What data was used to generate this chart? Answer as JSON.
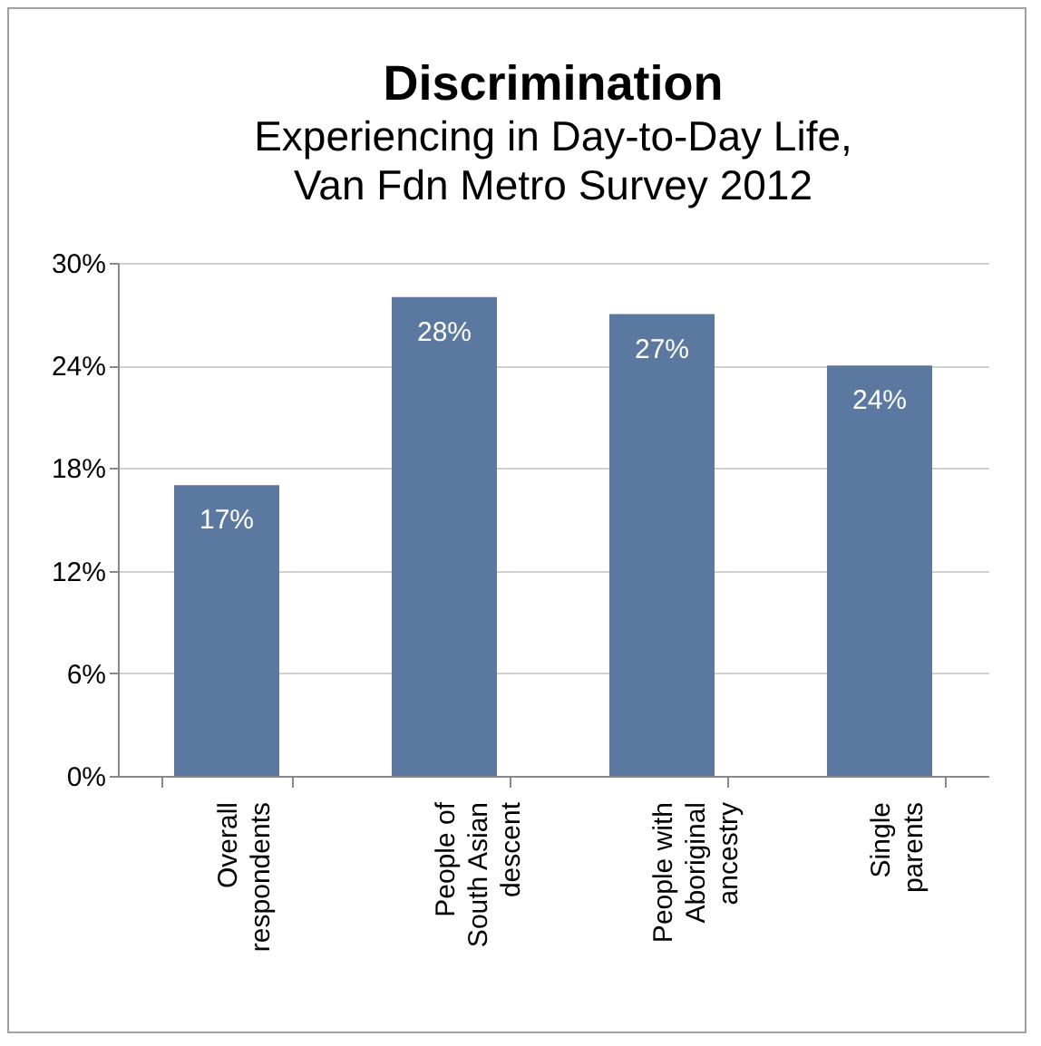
{
  "chart_data": {
    "type": "bar",
    "title": "Discrimination",
    "subtitle": "Experiencing in Day-to-Day Life,\nVan Fdn Metro Survey 2012",
    "categories": [
      "Overall\nrespondents",
      "People of\nSouth Asian\ndescent",
      "People with\nAboriginal\nancestry",
      "Single\nparents"
    ],
    "values": [
      17,
      28,
      27,
      24
    ],
    "color": "#5a78a0",
    "data_labels": true,
    "value_labels": [
      "17%",
      "28%",
      "27%",
      "24%"
    ],
    "ylim": [
      0,
      30
    ],
    "yticks": [
      {
        "value": 0,
        "label": "0%"
      },
      {
        "value": 6,
        "label": "6%"
      },
      {
        "value": 12,
        "label": "12%"
      },
      {
        "value": 18,
        "label": "18%"
      },
      {
        "value": 24,
        "label": "24%"
      },
      {
        "value": 30,
        "label": "30%"
      }
    ],
    "grid": "y"
  }
}
